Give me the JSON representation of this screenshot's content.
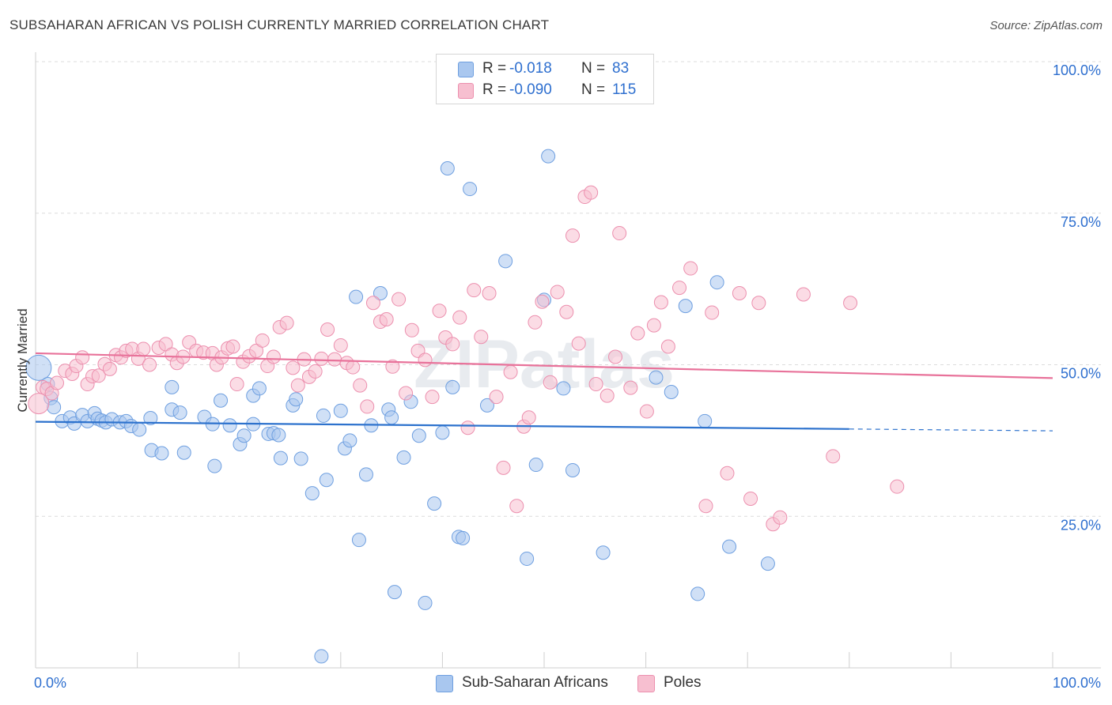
{
  "title": "SUBSAHARAN AFRICAN VS POLISH CURRENTLY MARRIED CORRELATION CHART",
  "source": "Source: ZipAtlas.com",
  "watermark": "ZIPatlas",
  "legend": {
    "rows": [
      {
        "r_label": "R =",
        "r_value": "-0.018",
        "n_label": "N =",
        "n_value": "83",
        "color": "#a9c7ef",
        "border": "#6e9fe0"
      },
      {
        "r_label": "R =",
        "r_value": "-0.090",
        "n_label": "N =",
        "n_value": "115",
        "color": "#f7bfd0",
        "border": "#ec8fae"
      }
    ]
  },
  "bottom_legend": [
    {
      "label": "Sub-Saharan Africans",
      "color": "#a9c7ef",
      "border": "#6e9fe0"
    },
    {
      "label": "Poles",
      "color": "#f7bfd0",
      "border": "#ec8fae"
    }
  ],
  "chart_data": {
    "type": "scatter",
    "ylabel": "Currently Married",
    "x_tick_labels": [
      "0.0%",
      "100.0%"
    ],
    "y_tick_labels": [
      "25.0%",
      "50.0%",
      "75.0%",
      "100.0%"
    ],
    "y_ticks": [
      25,
      50,
      75,
      100
    ],
    "xlim": [
      0,
      100
    ],
    "ylim": [
      0,
      100
    ],
    "grid": true,
    "series": [
      {
        "name": "Sub-Saharan Africans",
        "color": "#6e9fe0",
        "fill": "#a9c7ef",
        "line_color": "#2d72cd",
        "trend": {
          "x0": 0,
          "y0": 40.6,
          "x1": 80,
          "y1": 39.4,
          "dash_to_x": 100,
          "dash_to_y": 39.1
        },
        "points": [
          [
            0.3,
            49.5
          ],
          [
            1.2,
            46.8
          ],
          [
            1.5,
            44.5
          ],
          [
            1.8,
            43.0
          ],
          [
            2.6,
            40.7
          ],
          [
            3.4,
            41.3
          ],
          [
            3.8,
            40.3
          ],
          [
            4.6,
            41.7
          ],
          [
            5.1,
            40.7
          ],
          [
            5.8,
            42.0
          ],
          [
            6.1,
            41.1
          ],
          [
            6.5,
            40.8
          ],
          [
            6.9,
            40.5
          ],
          [
            7.5,
            41.0
          ],
          [
            8.3,
            40.5
          ],
          [
            8.9,
            40.7
          ],
          [
            9.4,
            39.9
          ],
          [
            10.2,
            39.3
          ],
          [
            11.4,
            35.9
          ],
          [
            11.3,
            41.2
          ],
          [
            12.4,
            35.4
          ],
          [
            13.4,
            46.3
          ],
          [
            13.4,
            42.6
          ],
          [
            14.2,
            42.1
          ],
          [
            14.6,
            35.5
          ],
          [
            16.6,
            41.4
          ],
          [
            17.4,
            40.2
          ],
          [
            17.6,
            33.3
          ],
          [
            18.2,
            44.1
          ],
          [
            19.1,
            40.0
          ],
          [
            20.1,
            36.9
          ],
          [
            20.5,
            38.3
          ],
          [
            21.4,
            40.2
          ],
          [
            21.4,
            44.9
          ],
          [
            22.0,
            46.1
          ],
          [
            22.9,
            38.6
          ],
          [
            23.4,
            38.7
          ],
          [
            23.9,
            38.4
          ],
          [
            24.1,
            34.6
          ],
          [
            25.3,
            43.3
          ],
          [
            25.6,
            44.3
          ],
          [
            26.1,
            34.5
          ],
          [
            27.2,
            28.8
          ],
          [
            28.1,
            1.9
          ],
          [
            28.3,
            41.6
          ],
          [
            28.6,
            31.0
          ],
          [
            30.0,
            42.4
          ],
          [
            30.4,
            36.2
          ],
          [
            30.9,
            37.5
          ],
          [
            31.5,
            61.2
          ],
          [
            31.8,
            21.1
          ],
          [
            32.5,
            31.9
          ],
          [
            33.0,
            40.0
          ],
          [
            33.9,
            61.8
          ],
          [
            34.7,
            42.6
          ],
          [
            35.0,
            41.3
          ],
          [
            35.3,
            12.5
          ],
          [
            36.2,
            34.7
          ],
          [
            36.9,
            43.9
          ],
          [
            37.7,
            38.3
          ],
          [
            38.3,
            10.7
          ],
          [
            39.2,
            27.1
          ],
          [
            40.0,
            38.8
          ],
          [
            40.5,
            82.4
          ],
          [
            41.0,
            46.3
          ],
          [
            41.6,
            21.6
          ],
          [
            42.0,
            21.4
          ],
          [
            42.7,
            79.0
          ],
          [
            44.4,
            43.3
          ],
          [
            46.2,
            67.1
          ],
          [
            48.3,
            18.0
          ],
          [
            49.2,
            33.5
          ],
          [
            50.0,
            60.7
          ],
          [
            50.4,
            84.4
          ],
          [
            51.9,
            46.1
          ],
          [
            52.8,
            32.6
          ],
          [
            55.8,
            19.0
          ],
          [
            61.0,
            47.9
          ],
          [
            62.5,
            45.5
          ],
          [
            63.9,
            59.7
          ],
          [
            65.1,
            12.2
          ],
          [
            65.8,
            40.7
          ],
          [
            67.0,
            63.6
          ],
          [
            68.2,
            20.0
          ],
          [
            72.0,
            17.2
          ]
        ]
      },
      {
        "name": "Poles",
        "color": "#ec8fae",
        "fill": "#f7bfd0",
        "line_color": "#e8729a",
        "trend": {
          "x0": 0,
          "y0": 51.9,
          "x1": 100,
          "y1": 47.8
        },
        "points": [
          [
            0.3,
            43.6
          ],
          [
            0.7,
            46.3
          ],
          [
            1.1,
            46.0
          ],
          [
            1.6,
            45.3
          ],
          [
            2.1,
            47.0
          ],
          [
            2.9,
            49.0
          ],
          [
            3.6,
            48.5
          ],
          [
            4.0,
            49.8
          ],
          [
            4.6,
            51.2
          ],
          [
            5.1,
            46.8
          ],
          [
            5.6,
            48.1
          ],
          [
            6.2,
            48.2
          ],
          [
            6.8,
            50.1
          ],
          [
            7.3,
            49.3
          ],
          [
            7.9,
            51.6
          ],
          [
            8.4,
            51.2
          ],
          [
            8.9,
            52.3
          ],
          [
            9.5,
            52.6
          ],
          [
            10.1,
            51.0
          ],
          [
            10.6,
            52.6
          ],
          [
            11.2,
            50.0
          ],
          [
            12.1,
            52.8
          ],
          [
            12.8,
            53.4
          ],
          [
            13.4,
            51.7
          ],
          [
            13.9,
            50.3
          ],
          [
            14.5,
            51.3
          ],
          [
            15.1,
            53.7
          ],
          [
            15.8,
            52.3
          ],
          [
            16.5,
            52.0
          ],
          [
            17.4,
            51.9
          ],
          [
            17.8,
            50.0
          ],
          [
            18.3,
            51.2
          ],
          [
            18.9,
            52.7
          ],
          [
            19.4,
            53.0
          ],
          [
            19.8,
            46.8
          ],
          [
            20.4,
            50.5
          ],
          [
            21.0,
            51.4
          ],
          [
            21.7,
            52.3
          ],
          [
            22.3,
            54.0
          ],
          [
            22.8,
            49.8
          ],
          [
            23.4,
            51.3
          ],
          [
            24.0,
            56.2
          ],
          [
            24.7,
            56.9
          ],
          [
            25.3,
            49.5
          ],
          [
            25.8,
            46.6
          ],
          [
            26.4,
            50.9
          ],
          [
            26.9,
            48.0
          ],
          [
            27.5,
            48.9
          ],
          [
            28.1,
            51.0
          ],
          [
            28.7,
            55.8
          ],
          [
            29.4,
            50.9
          ],
          [
            30.0,
            53.2
          ],
          [
            30.6,
            50.3
          ],
          [
            31.2,
            49.6
          ],
          [
            31.9,
            46.6
          ],
          [
            32.6,
            43.1
          ],
          [
            33.2,
            60.2
          ],
          [
            33.9,
            57.1
          ],
          [
            34.5,
            57.5
          ],
          [
            35.1,
            49.7
          ],
          [
            35.7,
            60.8
          ],
          [
            36.4,
            45.3
          ],
          [
            37.0,
            55.7
          ],
          [
            37.6,
            52.3
          ],
          [
            38.3,
            50.8
          ],
          [
            39.0,
            44.7
          ],
          [
            39.7,
            58.9
          ],
          [
            40.3,
            54.5
          ],
          [
            41.0,
            53.4
          ],
          [
            41.7,
            57.8
          ],
          [
            42.5,
            39.6
          ],
          [
            43.1,
            62.3
          ],
          [
            43.8,
            54.6
          ],
          [
            44.6,
            61.8
          ],
          [
            45.3,
            44.7
          ],
          [
            46.0,
            33.0
          ],
          [
            46.7,
            48.8
          ],
          [
            47.3,
            26.7
          ],
          [
            48.0,
            39.8
          ],
          [
            48.5,
            41.3
          ],
          [
            49.1,
            57.0
          ],
          [
            49.8,
            60.4
          ],
          [
            50.6,
            47.1
          ],
          [
            51.3,
            62.0
          ],
          [
            52.2,
            58.7
          ],
          [
            52.8,
            71.3
          ],
          [
            53.4,
            53.5
          ],
          [
            54.0,
            77.7
          ],
          [
            54.6,
            78.4
          ],
          [
            55.1,
            46.8
          ],
          [
            56.2,
            44.9
          ],
          [
            57.0,
            51.3
          ],
          [
            57.4,
            71.7
          ],
          [
            58.5,
            46.2
          ],
          [
            59.2,
            55.2
          ],
          [
            60.1,
            42.3
          ],
          [
            60.8,
            56.5
          ],
          [
            61.5,
            60.3
          ],
          [
            62.2,
            53.0
          ],
          [
            63.3,
            62.7
          ],
          [
            64.4,
            65.9
          ],
          [
            65.9,
            26.7
          ],
          [
            66.5,
            58.6
          ],
          [
            68.0,
            32.1
          ],
          [
            69.2,
            61.8
          ],
          [
            70.3,
            27.9
          ],
          [
            71.1,
            60.2
          ],
          [
            72.5,
            23.7
          ],
          [
            73.2,
            24.8
          ],
          [
            75.5,
            61.6
          ],
          [
            78.4,
            34.9
          ],
          [
            80.1,
            60.2
          ],
          [
            84.7,
            29.9
          ]
        ]
      }
    ]
  }
}
